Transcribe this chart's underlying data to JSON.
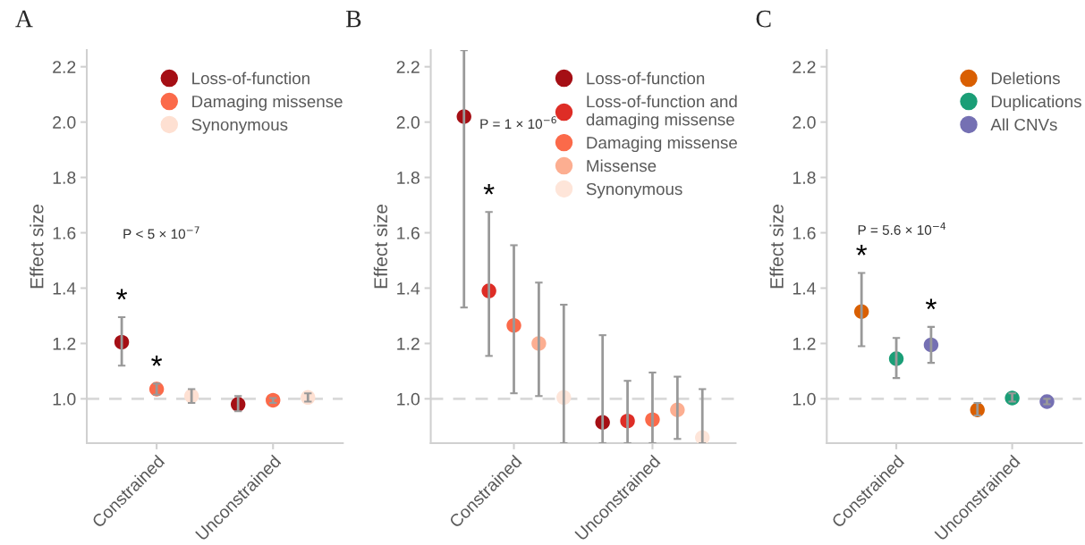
{
  "chart_data": [
    {
      "type": "scatter",
      "title": "A",
      "ylabel": "Effect size",
      "categories": [
        "Constrained",
        "Unconstrained"
      ],
      "ylim": [
        0.84,
        2.26
      ],
      "yticks": [
        {
          "value": 1.0,
          "label": "1.0"
        },
        {
          "value": 1.2,
          "label": "1.2"
        },
        {
          "value": 1.4,
          "label": "1.4"
        },
        {
          "value": 1.6,
          "label": "1.6"
        },
        {
          "value": 1.8,
          "label": "1.8"
        },
        {
          "value": 2.0,
          "label": "2.0"
        },
        {
          "value": 2.2,
          "label": "2.2"
        }
      ],
      "grid": false,
      "legend": "top right",
      "marker": "circle",
      "ref_lines": [
        {
          "axis": "y",
          "value": 1.0,
          "color": "#d9d9d9",
          "line_style": "dashed"
        }
      ],
      "annotations": [
        "P < 5 × 10$^{−7}$"
      ],
      "series": [
        {
          "name": "Loss-of-function",
          "color": "#a50f15",
          "values": [
            1.205,
            0.98
          ],
          "errors": [
            [
              1.12,
              1.295
            ],
            [
              0.955,
              1.01
            ]
          ],
          "value_labels": [
            "*",
            null
          ]
        },
        {
          "name": "Damaging missense",
          "color": "#fb6a4a",
          "values": [
            1.035,
            0.995
          ],
          "errors": [
            [
              1.015,
              1.055
            ],
            [
              0.985,
              1.003
            ]
          ],
          "value_labels": [
            "*",
            null
          ]
        },
        {
          "name": "Synonymous",
          "color": "#fee0d2",
          "values": [
            1.01,
            1.005
          ],
          "errors": [
            [
              0.985,
              1.035
            ],
            [
              0.99,
              1.02
            ]
          ]
        }
      ]
    },
    {
      "type": "scatter",
      "title": "B",
      "ylabel": "Effect size",
      "categories": [
        "Constrained",
        "Unconstrained"
      ],
      "ylim": [
        0.84,
        2.26
      ],
      "yticks": [
        {
          "value": 1.0,
          "label": "1.0"
        },
        {
          "value": 1.2,
          "label": "1.2"
        },
        {
          "value": 1.4,
          "label": "1.4"
        },
        {
          "value": 1.6,
          "label": "1.6"
        },
        {
          "value": 1.8,
          "label": "1.8"
        },
        {
          "value": 2.0,
          "label": "2.0"
        },
        {
          "value": 2.2,
          "label": "2.2"
        }
      ],
      "grid": false,
      "legend": "top right",
      "marker": "circle",
      "ref_lines": [
        {
          "axis": "y",
          "value": 1.0,
          "color": "#d9d9d9",
          "line_style": "dashed"
        }
      ],
      "annotations": [
        "P = 1 × 10$^{−6}$"
      ],
      "series": [
        {
          "name": "Loss-of-function",
          "color": "#a50f15",
          "values": [
            2.02,
            0.915
          ],
          "errors": [
            [
              1.33,
              2.26
            ],
            [
              0.84,
              1.23
            ]
          ]
        },
        {
          "name": "Loss-of-function and damaging missense",
          "color": "#de2d26",
          "values": [
            1.39,
            0.92
          ],
          "errors": [
            [
              1.155,
              1.675
            ],
            [
              0.84,
              1.065
            ]
          ],
          "value_labels": [
            "*",
            null
          ]
        },
        {
          "name": "Damaging missense",
          "color": "#fb6a4a",
          "values": [
            1.265,
            0.925
          ],
          "errors": [
            [
              1.02,
              1.555
            ],
            [
              0.84,
              1.095
            ]
          ]
        },
        {
          "name": "Missense",
          "color": "#fcae91",
          "values": [
            1.2,
            0.96
          ],
          "errors": [
            [
              1.01,
              1.42
            ],
            [
              0.855,
              1.08
            ]
          ]
        },
        {
          "name": "Synonymous",
          "color": "#fee5d9",
          "values": [
            1.005,
            0.86
          ],
          "errors": [
            [
              0.84,
              1.34
            ],
            [
              0.84,
              1.035
            ]
          ]
        }
      ]
    },
    {
      "type": "scatter",
      "title": "C",
      "ylabel": "Effect size",
      "categories": [
        "Constrained",
        "Unconstrained"
      ],
      "ylim": [
        0.84,
        2.26
      ],
      "yticks": [
        {
          "value": 1.0,
          "label": "1.0"
        },
        {
          "value": 1.2,
          "label": "1.2"
        },
        {
          "value": 1.4,
          "label": "1.4"
        },
        {
          "value": 1.6,
          "label": "1.6"
        },
        {
          "value": 1.8,
          "label": "1.8"
        },
        {
          "value": 2.0,
          "label": "2.0"
        },
        {
          "value": 2.2,
          "label": "2.2"
        }
      ],
      "grid": false,
      "legend": "top right",
      "marker": "circle",
      "ref_lines": [
        {
          "axis": "y",
          "value": 1.0,
          "color": "#d9d9d9",
          "line_style": "dashed"
        }
      ],
      "annotations": [
        "P = 5.6 × 10$^{−4}$"
      ],
      "series": [
        {
          "name": "Deletions",
          "color": "#d95f02",
          "values": [
            1.315,
            0.96
          ],
          "errors": [
            [
              1.19,
              1.455
            ],
            [
              0.94,
              0.985
            ]
          ],
          "value_labels": [
            "*",
            null
          ]
        },
        {
          "name": "Duplications",
          "color": "#1b9e77",
          "values": [
            1.145,
            1.003
          ],
          "errors": [
            [
              1.075,
              1.22
            ],
            [
              0.99,
              1.02
            ]
          ]
        },
        {
          "name": "All CNVs",
          "color": "#7570b3",
          "values": [
            1.195,
            0.99
          ],
          "errors": [
            [
              1.13,
              1.26
            ],
            [
              0.98,
              1.0
            ]
          ],
          "value_labels": [
            "*",
            null
          ]
        }
      ]
    }
  ]
}
